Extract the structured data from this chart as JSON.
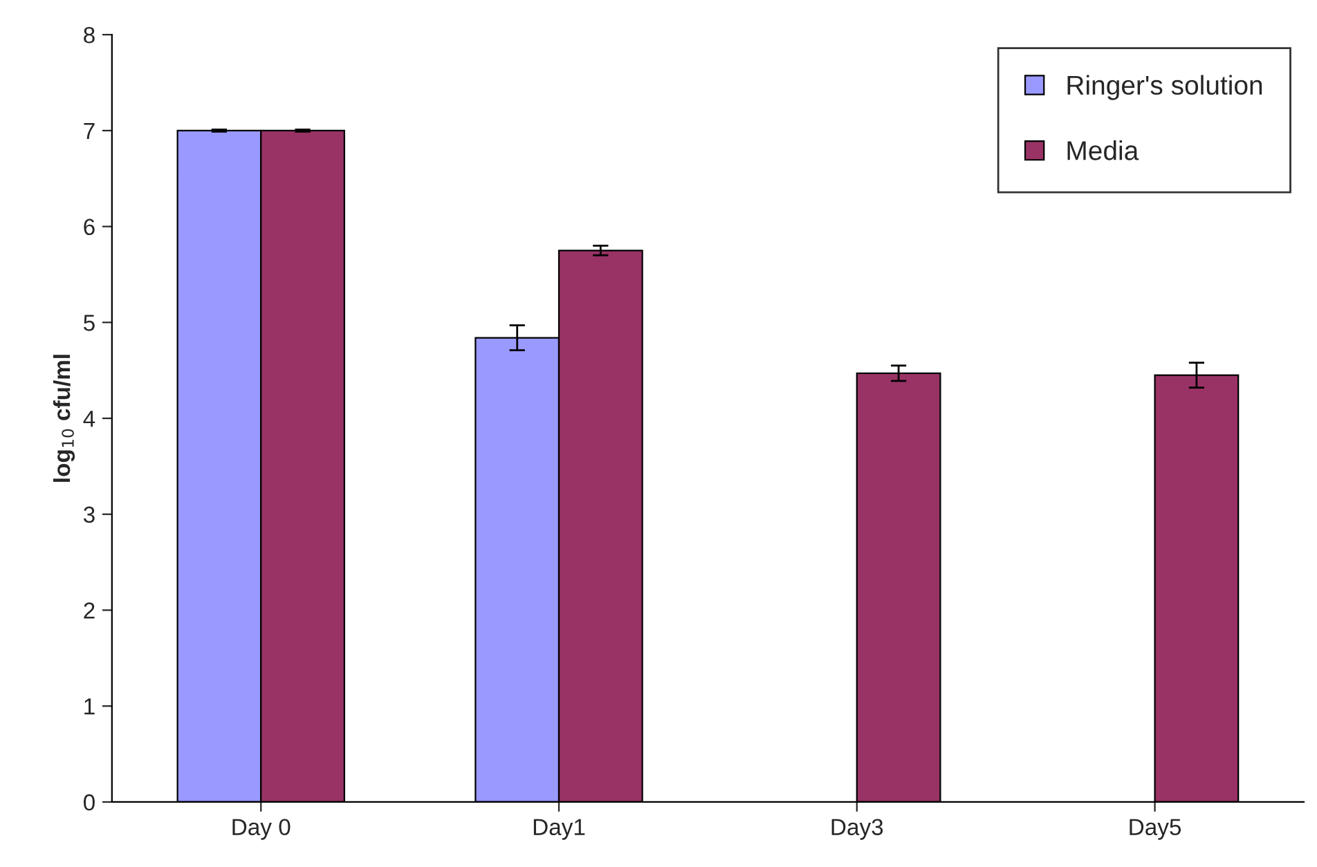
{
  "chart_data": {
    "type": "bar",
    "ylabel": "log$_{10}$ cfu/ml",
    "categories": [
      "Day 0",
      "Day1",
      "Day3",
      "Day5"
    ],
    "series": [
      {
        "name": "Ringer's solution",
        "color": "#9999ff",
        "values": [
          7.0,
          4.84,
          null,
          null
        ],
        "errors": [
          0.01,
          0.13,
          null,
          null
        ]
      },
      {
        "name": "Media",
        "color": "#993366",
        "values": [
          7.0,
          5.75,
          4.47,
          4.45
        ],
        "errors": [
          0.01,
          0.05,
          0.08,
          0.13
        ]
      }
    ],
    "ylim": [
      0,
      8
    ],
    "yticks": [
      0,
      1,
      2,
      3,
      4,
      5,
      6,
      7,
      8
    ],
    "grid": false,
    "legend": "top right"
  }
}
